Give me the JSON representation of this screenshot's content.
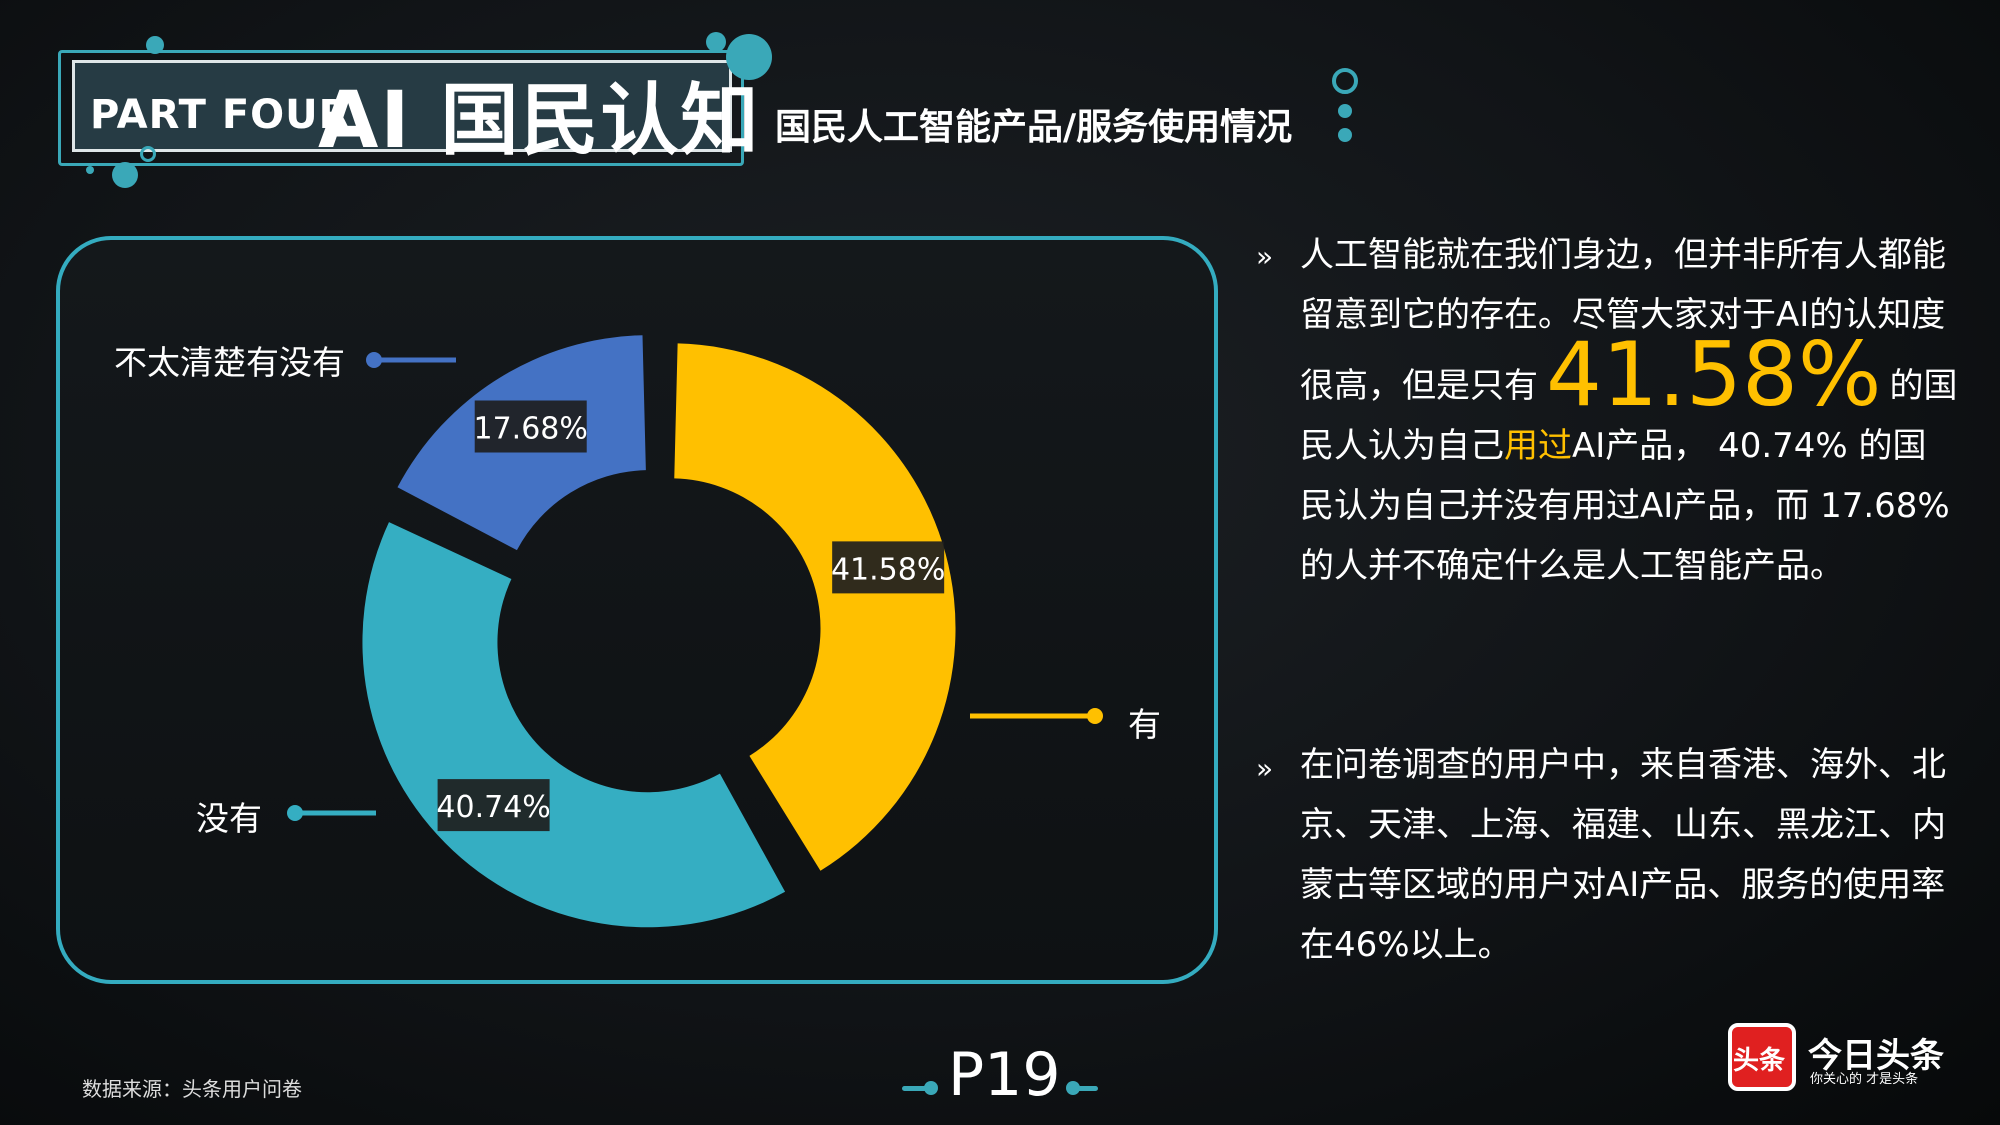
{
  "header": {
    "part_label": "PART FOUR",
    "part_title": "AI 国民认知",
    "subtitle": "国民人工智能产品/服务使用情况"
  },
  "chart_data": {
    "type": "pie",
    "variant": "donut",
    "categories": [
      "有",
      "没有",
      "不太清楚有没有"
    ],
    "values": [
      41.58,
      40.74,
      17.68
    ],
    "value_labels": [
      "41.58%",
      "40.74%",
      "17.68%"
    ],
    "colors": [
      "#ffc000",
      "#35aec2",
      "#4472c4"
    ],
    "title": "",
    "legend": "callout-lines"
  },
  "text": {
    "bullet": "»",
    "p1_a": "人工智能就在我们身边，但并非所有人都能留意到它的存在。尽管大家对于AI的认知度很高，但是只有",
    "p1_big": "41.58%",
    "p1_b": "的国民人认为自己",
    "p1_hl": "用过",
    "p1_c": "AI产品， 40.74% 的国民认为自己并没有用过AI产品，而 17.68% 的人并不确定什么是人工智能产品。",
    "p2": "在问卷调查的用户中，来自香港、海外、北京、天津、上海、福建、山东、黑龙江、内蒙古等区域的用户对AI产品、服务的使用率在46%以上。"
  },
  "footer": {
    "source": "数据来源：头条用户问卷",
    "page": "P19",
    "logo_box": "头条",
    "logo_name": "今日头条",
    "logo_slogan": "你关心的 才是头条"
  }
}
